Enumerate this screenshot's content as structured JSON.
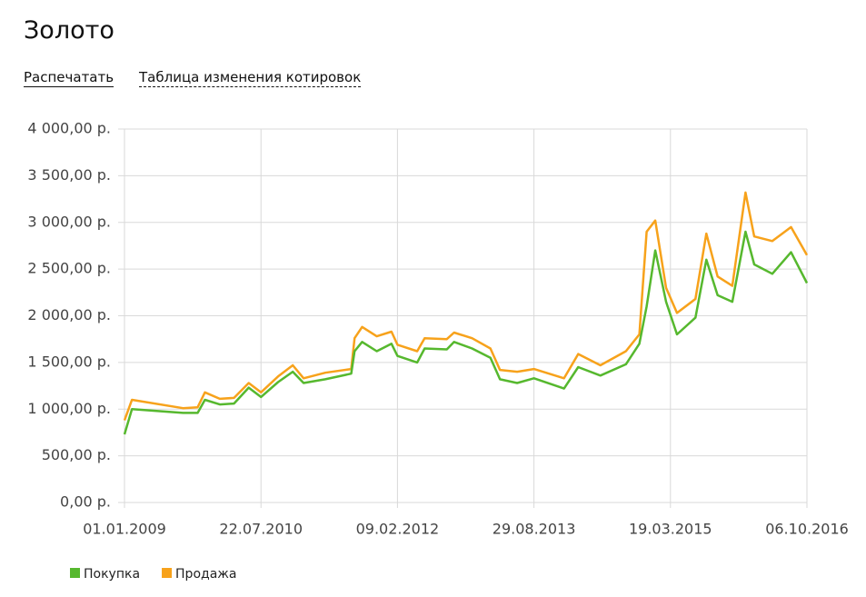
{
  "header": {
    "title": "Золото",
    "links": [
      "Распечатать",
      "Таблица изменения котировок"
    ]
  },
  "chart_data": {
    "type": "line",
    "x": [
      "01.01.2009",
      "01.02.2009",
      "01.09.2009",
      "01.11.2009",
      "01.12.2009",
      "01.02.2010",
      "01.04.2010",
      "01.06.2010",
      "22.07.2010",
      "01.10.2010",
      "01.12.2010",
      "15.01.2011",
      "15.04.2011",
      "01.08.2011",
      "15.08.2011",
      "15.09.2011",
      "15.11.2011",
      "15.01.2012",
      "09.02.2012",
      "01.05.2012",
      "01.06.2012",
      "01.09.2012",
      "01.10.2012",
      "15.12.2012",
      "01.03.2013",
      "10.04.2013",
      "20.06.2013",
      "29.08.2013",
      "01.01.2014",
      "01.03.2014",
      "01.06.2014",
      "15.09.2014",
      "10.11.2014",
      "10.12.2014",
      "15.01.2015",
      "01.03.2015",
      "15.04.2015",
      "01.07.2015",
      "15.08.2015",
      "01.10.2015",
      "01.12.2015",
      "25.01.2016",
      "01.03.2016",
      "15.05.2016",
      "01.08.2016",
      "06.10.2016"
    ],
    "series": [
      {
        "name": "Покупка",
        "color": "#56b82e",
        "values": [
          730,
          1000,
          960,
          960,
          1100,
          1050,
          1060,
          1230,
          1130,
          1290,
          1400,
          1280,
          1320,
          1380,
          1620,
          1720,
          1620,
          1700,
          1570,
          1500,
          1650,
          1640,
          1720,
          1650,
          1550,
          1320,
          1280,
          1330,
          1220,
          1450,
          1360,
          1480,
          1700,
          2100,
          2700,
          2150,
          1800,
          1980,
          2600,
          2220,
          2150,
          2900,
          2550,
          2450,
          2680,
          2350
        ]
      },
      {
        "name": "Продажа",
        "color": "#f7a21b",
        "values": [
          880,
          1100,
          1010,
          1020,
          1180,
          1110,
          1120,
          1280,
          1180,
          1350,
          1470,
          1330,
          1390,
          1430,
          1760,
          1880,
          1780,
          1830,
          1690,
          1620,
          1760,
          1750,
          1820,
          1760,
          1650,
          1420,
          1400,
          1430,
          1330,
          1590,
          1470,
          1620,
          1800,
          2900,
          3020,
          2300,
          2030,
          2180,
          2880,
          2420,
          2320,
          3320,
          2850,
          2800,
          2950,
          2650
        ]
      }
    ],
    "xlim": [
      "01.01.2009",
      "06.10.2016"
    ],
    "xticks": [
      "01.01.2009",
      "22.07.2010",
      "09.02.2012",
      "29.08.2013",
      "19.03.2015",
      "06.10.2016"
    ],
    "ylim": [
      0,
      4000
    ],
    "yticks": [
      {
        "value": 0,
        "label": "0,00 р."
      },
      {
        "value": 500,
        "label": "500,00 р."
      },
      {
        "value": 1000,
        "label": "1 000,00 р."
      },
      {
        "value": 1500,
        "label": "1 500,00 р."
      },
      {
        "value": 2000,
        "label": "2 000,00 р."
      },
      {
        "value": 2500,
        "label": "2 500,00 р."
      },
      {
        "value": 3000,
        "label": "3 000,00 р."
      },
      {
        "value": 3500,
        "label": "3 500,00 р."
      },
      {
        "value": 4000,
        "label": "4 000,00 р."
      }
    ],
    "grid": true,
    "legend": "bottom-left"
  }
}
